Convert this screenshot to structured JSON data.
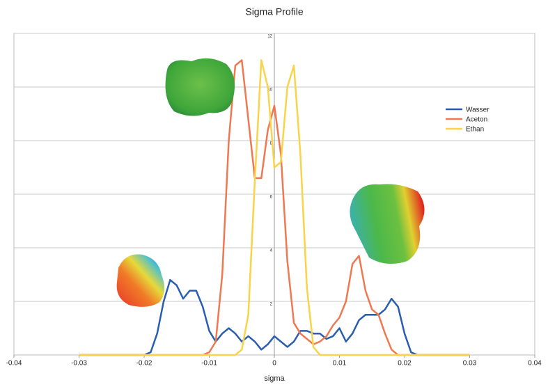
{
  "chart_data": {
    "type": "line",
    "title": "Sigma Profile",
    "x_label": "sigma",
    "x": [
      -0.03,
      -0.029,
      -0.028,
      -0.027,
      -0.026,
      -0.025,
      -0.024,
      -0.023,
      -0.022,
      -0.021,
      -0.02,
      -0.019,
      -0.018,
      -0.017,
      -0.016,
      -0.015,
      -0.014,
      -0.013,
      -0.012,
      -0.011,
      -0.01,
      -0.009,
      -0.008,
      -0.007,
      -0.006,
      -0.005,
      -0.004,
      -0.003,
      -0.002,
      -0.001,
      0,
      0.001,
      0.002,
      0.003,
      0.004,
      0.005,
      0.006,
      0.007,
      0.008,
      0.009,
      0.01,
      0.011,
      0.012,
      0.013,
      0.014,
      0.015,
      0.016,
      0.017,
      0.018,
      0.019,
      0.02,
      0.021,
      0.022,
      0.023,
      0.024,
      0.025,
      0.026,
      0.027,
      0.028,
      0.029,
      0.03
    ],
    "series": [
      {
        "name": "Wasser",
        "color": "#2a5db0",
        "values": [
          0,
          0,
          0,
          0,
          0,
          0,
          0,
          0,
          0,
          0,
          0,
          0.1,
          0.8,
          2.0,
          2.8,
          2.6,
          2.1,
          2.4,
          2.4,
          1.8,
          0.9,
          0.5,
          0.8,
          1.0,
          0.8,
          0.5,
          0.7,
          0.5,
          0.2,
          0.4,
          0.7,
          0.5,
          0.3,
          0.5,
          0.9,
          0.9,
          0.8,
          0.8,
          0.6,
          0.7,
          1.0,
          0.5,
          0.8,
          1.3,
          1.5,
          1.5,
          1.5,
          1.7,
          2.1,
          1.8,
          0.8,
          0.1,
          0,
          0,
          0,
          0,
          0,
          0,
          0,
          0,
          0
        ]
      },
      {
        "name": "Aceton",
        "color": "#f07850",
        "values": [
          0,
          0,
          0,
          0,
          0,
          0,
          0,
          0,
          0,
          0,
          0,
          0,
          0,
          0,
          0,
          0,
          0,
          0,
          0,
          0,
          0.1,
          0.5,
          3.0,
          8.0,
          10.8,
          11.0,
          8.8,
          6.6,
          6.6,
          8.4,
          9.3,
          7.5,
          3.5,
          1.2,
          0.8,
          0.6,
          0.4,
          0.5,
          0.7,
          1.1,
          1.4,
          2.0,
          3.4,
          3.7,
          2.4,
          1.7,
          1.5,
          0.8,
          0.2,
          0,
          0,
          0,
          0,
          0,
          0,
          0,
          0,
          0,
          0,
          0,
          0
        ]
      },
      {
        "name": "Ethan",
        "color": "#f7d44a",
        "values": [
          0,
          0,
          0,
          0,
          0,
          0,
          0,
          0,
          0,
          0,
          0,
          0,
          0,
          0,
          0,
          0,
          0,
          0,
          0,
          0,
          0,
          0,
          0,
          0,
          0,
          0.2,
          1.5,
          6.5,
          11.0,
          10.0,
          7.0,
          7.2,
          10.0,
          10.8,
          7.5,
          2.5,
          0.3,
          0,
          0,
          0,
          0,
          0,
          0,
          0,
          0,
          0,
          0,
          0,
          0,
          0,
          0,
          0,
          0,
          0,
          0,
          0,
          0,
          0,
          0,
          0,
          0
        ]
      }
    ],
    "xlim": [
      -0.04,
      0.04
    ],
    "xticks": [
      -0.04,
      -0.03,
      -0.02,
      -0.01,
      0,
      0.01,
      0.02,
      0.03,
      0.04
    ],
    "ylim": [
      0,
      12
    ],
    "yticks": [
      2,
      4,
      6,
      8,
      10,
      12
    ],
    "grid": true,
    "legend": "right"
  }
}
